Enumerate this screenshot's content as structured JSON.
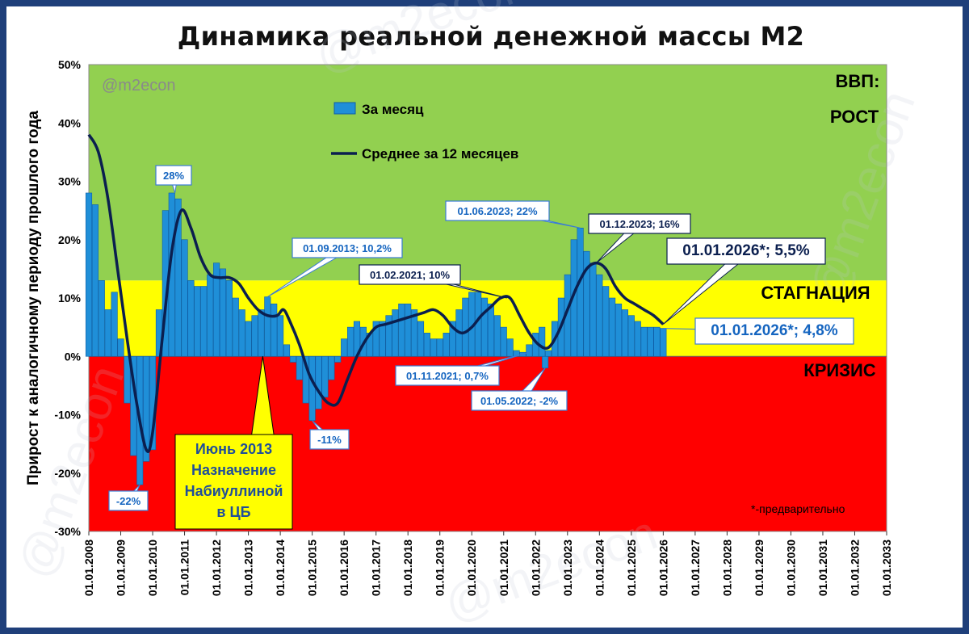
{
  "chart_data": {
    "type": "bar+line",
    "title": "Динамика реальной денежной массы М2",
    "ylabel": "Прирост к аналогичному периоду прошлого года",
    "ylim": [
      -30,
      50
    ],
    "y_ticks": [
      "-30%",
      "-20%",
      "-10%",
      "0%",
      "10%",
      "20%",
      "30%",
      "40%",
      "50%"
    ],
    "y_tick_values": [
      -30,
      -20,
      -10,
      0,
      10,
      20,
      30,
      40,
      50
    ],
    "x_range": [
      2008,
      2033
    ],
    "x_ticks": [
      "01.01.2008",
      "01.01.2009",
      "01.01.2010",
      "01.01.2011",
      "01.01.2012",
      "01.01.2013",
      "01.01.2014",
      "01.01.2015",
      "01.01.2016",
      "01.01.2017",
      "01.01.2018",
      "01.01.2019",
      "01.01.2020",
      "01.01.2021",
      "01.01.2022",
      "01.01.2023",
      "01.01.2024",
      "01.01.2025",
      "01.01.2026",
      "01.01.2027",
      "01.01.2028",
      "01.01.2029",
      "01.01.2030",
      "01.01.2031",
      "01.01.2032",
      "01.01.2033"
    ],
    "watermark": "@m2econ",
    "zones": {
      "growth": {
        "label_line1": "ВВП:",
        "label_line2": "РОСТ",
        "from": 13,
        "to": 50,
        "color": "#92d050"
      },
      "stagnation": {
        "label": "СТАГНАЦИЯ",
        "from": 0,
        "to": 13,
        "color": "#ffff00"
      },
      "crisis": {
        "label": "КРИЗИС",
        "from": -30,
        "to": 0,
        "color": "#ff0000"
      }
    },
    "legend": {
      "bars": "За месяц",
      "line": "Среднее за 12 месяцев"
    },
    "series": [
      {
        "name": "За месяц",
        "kind": "bar",
        "color": "#1f8fd8",
        "points": [
          [
            2008.0,
            28
          ],
          [
            2008.2,
            26
          ],
          [
            2008.4,
            13
          ],
          [
            2008.6,
            8
          ],
          [
            2008.8,
            11
          ],
          [
            2009.0,
            3
          ],
          [
            2009.2,
            -8
          ],
          [
            2009.4,
            -17
          ],
          [
            2009.6,
            -22
          ],
          [
            2009.8,
            -18
          ],
          [
            2010.0,
            -16
          ],
          [
            2010.2,
            8
          ],
          [
            2010.4,
            25
          ],
          [
            2010.6,
            28
          ],
          [
            2010.8,
            27
          ],
          [
            2011.0,
            20
          ],
          [
            2011.2,
            13
          ],
          [
            2011.4,
            12
          ],
          [
            2011.6,
            12
          ],
          [
            2011.8,
            14
          ],
          [
            2012.0,
            16
          ],
          [
            2012.2,
            15
          ],
          [
            2012.4,
            13
          ],
          [
            2012.6,
            10
          ],
          [
            2012.8,
            8
          ],
          [
            2013.0,
            6
          ],
          [
            2013.2,
            7
          ],
          [
            2013.4,
            8
          ],
          [
            2013.6,
            10.2
          ],
          [
            2013.8,
            9
          ],
          [
            2014.0,
            7
          ],
          [
            2014.2,
            2
          ],
          [
            2014.4,
            -1
          ],
          [
            2014.6,
            -4
          ],
          [
            2014.8,
            -8
          ],
          [
            2015.0,
            -11
          ],
          [
            2015.2,
            -9
          ],
          [
            2015.4,
            -7
          ],
          [
            2015.6,
            -4
          ],
          [
            2015.8,
            -1
          ],
          [
            2016.0,
            3
          ],
          [
            2016.2,
            5
          ],
          [
            2016.4,
            6
          ],
          [
            2016.6,
            5
          ],
          [
            2016.8,
            4
          ],
          [
            2017.0,
            6
          ],
          [
            2017.2,
            6
          ],
          [
            2017.4,
            7
          ],
          [
            2017.6,
            8
          ],
          [
            2017.8,
            9
          ],
          [
            2018.0,
            9
          ],
          [
            2018.2,
            8
          ],
          [
            2018.4,
            6
          ],
          [
            2018.6,
            4
          ],
          [
            2018.8,
            3
          ],
          [
            2019.0,
            3
          ],
          [
            2019.2,
            4
          ],
          [
            2019.4,
            6
          ],
          [
            2019.6,
            8
          ],
          [
            2019.8,
            10
          ],
          [
            2020.0,
            11
          ],
          [
            2020.2,
            11
          ],
          [
            2020.4,
            10
          ],
          [
            2020.6,
            9
          ],
          [
            2020.8,
            7
          ],
          [
            2021.0,
            5
          ],
          [
            2021.2,
            3
          ],
          [
            2021.4,
            1
          ],
          [
            2021.6,
            0.7
          ],
          [
            2021.8,
            2
          ],
          [
            2022.0,
            4
          ],
          [
            2022.2,
            5
          ],
          [
            2022.3,
            -2
          ],
          [
            2022.4,
            1
          ],
          [
            2022.6,
            6
          ],
          [
            2022.8,
            10
          ],
          [
            2023.0,
            14
          ],
          [
            2023.2,
            20
          ],
          [
            2023.4,
            22
          ],
          [
            2023.6,
            18
          ],
          [
            2023.8,
            16
          ],
          [
            2024.0,
            14
          ],
          [
            2024.2,
            12
          ],
          [
            2024.4,
            10
          ],
          [
            2024.6,
            9
          ],
          [
            2024.8,
            8
          ],
          [
            2025.0,
            7
          ],
          [
            2025.2,
            6
          ],
          [
            2025.4,
            5
          ],
          [
            2025.6,
            5
          ],
          [
            2025.8,
            5
          ],
          [
            2026.0,
            4.8
          ]
        ]
      },
      {
        "name": "Среднее за 12 месяцев",
        "kind": "line",
        "color": "#0b1f4f",
        "points": [
          [
            2008.0,
            38
          ],
          [
            2008.3,
            35
          ],
          [
            2008.6,
            27
          ],
          [
            2008.9,
            15
          ],
          [
            2009.2,
            3
          ],
          [
            2009.5,
            -8
          ],
          [
            2009.8,
            -16
          ],
          [
            2010.0,
            -13
          ],
          [
            2010.3,
            3
          ],
          [
            2010.6,
            18
          ],
          [
            2010.9,
            25
          ],
          [
            2011.2,
            22
          ],
          [
            2011.5,
            17
          ],
          [
            2011.8,
            14
          ],
          [
            2012.1,
            13.5
          ],
          [
            2012.4,
            13.5
          ],
          [
            2012.7,
            12.5
          ],
          [
            2013.0,
            10
          ],
          [
            2013.3,
            8
          ],
          [
            2013.6,
            7
          ],
          [
            2013.9,
            7
          ],
          [
            2014.1,
            8
          ],
          [
            2014.3,
            6
          ],
          [
            2014.6,
            2
          ],
          [
            2014.9,
            -3
          ],
          [
            2015.2,
            -6
          ],
          [
            2015.5,
            -8
          ],
          [
            2015.8,
            -8
          ],
          [
            2016.1,
            -4
          ],
          [
            2016.4,
            0
          ],
          [
            2016.7,
            3
          ],
          [
            2017.0,
            5
          ],
          [
            2017.3,
            5.5
          ],
          [
            2017.6,
            6
          ],
          [
            2017.9,
            6.5
          ],
          [
            2018.2,
            7
          ],
          [
            2018.5,
            7.5
          ],
          [
            2018.8,
            8
          ],
          [
            2019.1,
            7
          ],
          [
            2019.4,
            5
          ],
          [
            2019.7,
            4
          ],
          [
            2020.0,
            5
          ],
          [
            2020.3,
            7
          ],
          [
            2020.6,
            8.5
          ],
          [
            2020.9,
            10
          ],
          [
            2021.2,
            10
          ],
          [
            2021.5,
            7
          ],
          [
            2021.8,
            4
          ],
          [
            2022.1,
            2
          ],
          [
            2022.4,
            1.5
          ],
          [
            2022.7,
            4
          ],
          [
            2023.0,
            8
          ],
          [
            2023.3,
            12
          ],
          [
            2023.6,
            15
          ],
          [
            2023.9,
            16
          ],
          [
            2024.2,
            15
          ],
          [
            2024.5,
            12
          ],
          [
            2024.8,
            10
          ],
          [
            2025.1,
            9
          ],
          [
            2025.4,
            8
          ],
          [
            2025.7,
            7
          ],
          [
            2026.0,
            5.5
          ]
        ]
      }
    ],
    "annotations": [
      {
        "text": "28%",
        "x": 2010.7,
        "y": 28,
        "style": "box"
      },
      {
        "text": "-22%",
        "x": 2009.6,
        "y": -22,
        "style": "box"
      },
      {
        "text": "-11%",
        "x": 2015.0,
        "y": -11,
        "style": "box"
      },
      {
        "text": "01.09.2013; 10,2%",
        "x": 2013.6,
        "y": 10.2,
        "style": "callout"
      },
      {
        "text": "01.02.2021; 10%",
        "x": 2021.1,
        "y": 10,
        "style": "callout"
      },
      {
        "text": "01.11.2021; 0,7%",
        "x": 2021.8,
        "y": 0.7,
        "style": "callout"
      },
      {
        "text": "01.05.2022; -2%",
        "x": 2022.3,
        "y": -2,
        "style": "callout"
      },
      {
        "text": "01.06.2023; 22%",
        "x": 2023.4,
        "y": 22,
        "style": "callout"
      },
      {
        "text": "01.12.2023; 16%",
        "x": 2023.9,
        "y": 16,
        "style": "callout"
      },
      {
        "text": "01.01.2026*; 5,5%",
        "x": 2026.0,
        "y": 5.5,
        "style": "big-dark"
      },
      {
        "text": "01.01.2026*; 4,8%",
        "x": 2026.0,
        "y": 4.8,
        "style": "big-blue"
      }
    ],
    "event_note": {
      "lines": [
        "Июнь 2013",
        "Назначение",
        "Набиуллиной",
        "в ЦБ"
      ],
      "x": 2013.45,
      "y": 0
    },
    "footnote": "*-предварительно"
  }
}
